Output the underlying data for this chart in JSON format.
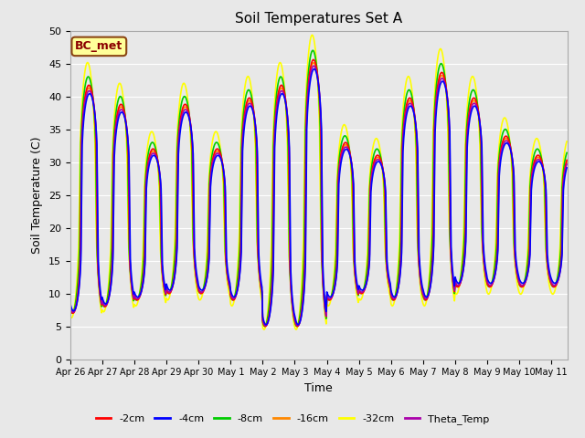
{
  "title": "Soil Temperatures Set A",
  "xlabel": "Time",
  "ylabel": "Soil Temperature (C)",
  "ylim": [
    0,
    50
  ],
  "yticks": [
    0,
    5,
    10,
    15,
    20,
    25,
    30,
    35,
    40,
    45,
    50
  ],
  "x_tick_labels": [
    "Apr 26",
    "Apr 27",
    "Apr 28",
    "Apr 29",
    "Apr 30",
    "May 1",
    "May 2",
    "May 3",
    "May 4",
    "May 5",
    "May 6",
    "May 7",
    "May 8",
    "May 9",
    "May 10",
    "May 11"
  ],
  "annotation_text": "BC_met",
  "annotation_bg": "#FFFF99",
  "annotation_border": "#8B4513",
  "series": [
    {
      "label": "-2cm",
      "color": "#FF0000",
      "lw": 1.2
    },
    {
      "label": "-4cm",
      "color": "#0000FF",
      "lw": 1.2
    },
    {
      "label": "-8cm",
      "color": "#00CC00",
      "lw": 1.2
    },
    {
      "label": "-16cm",
      "color": "#FF8800",
      "lw": 1.2
    },
    {
      "label": "-32cm",
      "color": "#FFFF00",
      "lw": 1.2
    },
    {
      "label": "Theta_Temp",
      "color": "#AA00AA",
      "lw": 1.2
    }
  ],
  "bg_color": "#E8E8E8",
  "fig_bg_color": "#F0F0F0",
  "grid_color": "#FFFFFF"
}
